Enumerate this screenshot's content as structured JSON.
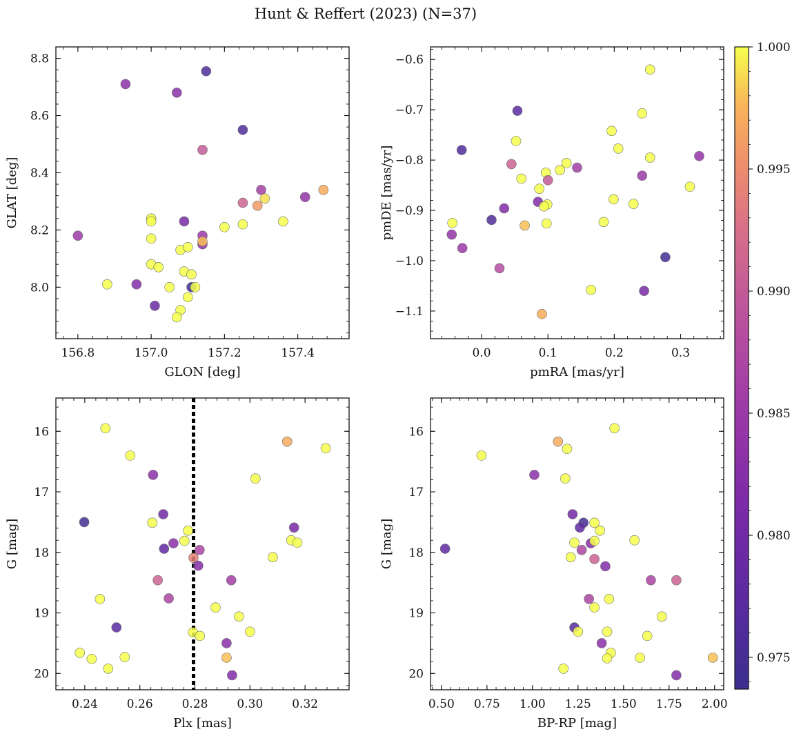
{
  "title": "Hunt & Reffert (2023) (N=37)",
  "colorbar": {
    "vmin": 0.9737,
    "vmax": 1.0,
    "ticks": [
      0.975,
      0.98,
      0.985,
      0.99,
      0.995,
      1.0
    ],
    "tick_labels": [
      "0.975",
      "0.980",
      "0.985",
      "0.990",
      "0.995",
      "1.000"
    ],
    "colormap": "plasma"
  },
  "chart_data": [
    {
      "type": "scatter",
      "id": "glon-glat",
      "xlabel": "GLON [deg]",
      "ylabel": "GLAT [deg]",
      "xlim": [
        156.74,
        157.54
      ],
      "ylim": [
        7.82,
        8.84
      ],
      "xticks": [
        156.8,
        157.0,
        157.2,
        157.4
      ],
      "xtick_labels": [
        "156.8",
        "157.0",
        "157.2",
        "157.4"
      ],
      "yticks": [
        8.0,
        8.2,
        8.4,
        8.6,
        8.8
      ],
      "ytick_labels": [
        "8.0",
        "8.2",
        "8.4",
        "8.6",
        "8.8"
      ],
      "points": [
        [
          156.93,
          8.71,
          0.983
        ],
        [
          157.15,
          8.755,
          0.976
        ],
        [
          157.07,
          8.68,
          0.983
        ],
        [
          157.25,
          8.55,
          0.976
        ],
        [
          157.14,
          8.48,
          0.99
        ],
        [
          157.47,
          8.34,
          0.997
        ],
        [
          157.3,
          8.34,
          0.986
        ],
        [
          157.31,
          8.31,
          0.999
        ],
        [
          157.25,
          8.295,
          0.991
        ],
        [
          157.29,
          8.285,
          0.996
        ],
        [
          157.42,
          8.315,
          0.984
        ],
        [
          156.8,
          8.18,
          0.985
        ],
        [
          157.0,
          8.24,
          1.0
        ],
        [
          157.0,
          8.23,
          1.0
        ],
        [
          157.0,
          8.17,
          1.0
        ],
        [
          157.09,
          8.23,
          0.981
        ],
        [
          157.14,
          8.18,
          0.985
        ],
        [
          157.14,
          8.15,
          0.983
        ],
        [
          157.14,
          8.16,
          0.998
        ],
        [
          157.2,
          8.21,
          1.0
        ],
        [
          157.25,
          8.22,
          1.0
        ],
        [
          157.36,
          8.23,
          1.0
        ],
        [
          157.08,
          8.13,
          1.0
        ],
        [
          157.1,
          8.14,
          1.0
        ],
        [
          157.0,
          8.08,
          1.0
        ],
        [
          157.02,
          8.07,
          1.0
        ],
        [
          157.09,
          8.055,
          1.0
        ],
        [
          157.11,
          8.045,
          1.0
        ],
        [
          156.88,
          8.01,
          1.0
        ],
        [
          156.96,
          8.01,
          0.982
        ],
        [
          157.05,
          8.0,
          1.0
        ],
        [
          157.11,
          8.0,
          0.974
        ],
        [
          157.12,
          8.0,
          1.0
        ],
        [
          157.1,
          7.965,
          1.0
        ],
        [
          157.01,
          7.935,
          0.979
        ],
        [
          157.08,
          7.92,
          1.0
        ],
        [
          157.07,
          7.895,
          1.0
        ]
      ]
    },
    {
      "type": "scatter",
      "id": "pm",
      "xlabel": "pmRA [mas/yr]",
      "ylabel": "pmDE [mas/yr]",
      "xlim": [
        -0.077,
        0.365
      ],
      "ylim": [
        -1.155,
        -0.575
      ],
      "xticks": [
        0.0,
        0.1,
        0.2,
        0.3
      ],
      "xtick_labels": [
        "0.0",
        "0.1",
        "0.2",
        "0.3"
      ],
      "yticks": [
        -1.1,
        -1.0,
        -0.9,
        -0.8,
        -0.7,
        -0.6
      ],
      "ytick_labels": [
        "−1.1",
        "−1.0",
        "−0.9",
        "−0.8",
        "−0.7",
        "−0.6"
      ],
      "points": [
        [
          0.254,
          -0.62,
          1.0
        ],
        [
          0.054,
          -0.702,
          0.977
        ],
        [
          0.242,
          -0.707,
          1.0
        ],
        [
          0.196,
          -0.742,
          1.0
        ],
        [
          -0.03,
          -0.78,
          0.976
        ],
        [
          0.052,
          -0.762,
          1.0
        ],
        [
          0.206,
          -0.777,
          1.0
        ],
        [
          0.254,
          -0.795,
          1.0
        ],
        [
          0.328,
          -0.792,
          0.984
        ],
        [
          0.045,
          -0.808,
          0.991
        ],
        [
          0.128,
          -0.806,
          1.0
        ],
        [
          0.144,
          -0.815,
          0.986
        ],
        [
          0.118,
          -0.82,
          1.0
        ],
        [
          0.097,
          -0.825,
          1.0
        ],
        [
          0.06,
          -0.837,
          1.0
        ],
        [
          0.1,
          -0.84,
          0.99
        ],
        [
          0.242,
          -0.831,
          0.985
        ],
        [
          0.087,
          -0.857,
          1.0
        ],
        [
          0.314,
          -0.853,
          1.0
        ],
        [
          0.199,
          -0.878,
          1.0
        ],
        [
          0.085,
          -0.883,
          0.982
        ],
        [
          0.229,
          -0.887,
          1.0
        ],
        [
          0.099,
          -0.888,
          1.0
        ],
        [
          0.094,
          -0.892,
          1.0
        ],
        [
          0.034,
          -0.896,
          0.982
        ],
        [
          0.015,
          -0.919,
          0.976
        ],
        [
          0.184,
          -0.923,
          1.0
        ],
        [
          0.098,
          -0.926,
          1.0
        ],
        [
          -0.044,
          -0.925,
          1.0
        ],
        [
          0.065,
          -0.93,
          0.998
        ],
        [
          -0.045,
          -0.948,
          0.984
        ],
        [
          -0.029,
          -0.975,
          0.985
        ],
        [
          0.277,
          -0.993,
          0.975
        ],
        [
          0.027,
          -1.015,
          0.988
        ],
        [
          0.165,
          -1.058,
          1.0
        ],
        [
          0.245,
          -1.06,
          0.981
        ],
        [
          0.091,
          -1.106,
          0.997
        ]
      ]
    },
    {
      "type": "scatter",
      "id": "plx-g",
      "xlabel": "Plx [mas]",
      "ylabel": "G [mag]",
      "xlim": [
        0.2295,
        0.336
      ],
      "ylim": [
        20.27,
        15.45
      ],
      "xticks": [
        0.24,
        0.26,
        0.28,
        0.3,
        0.32
      ],
      "xtick_labels": [
        "0.24",
        "0.26",
        "0.28",
        "0.30",
        "0.32"
      ],
      "yticks": [
        16,
        17,
        18,
        19,
        20
      ],
      "ytick_labels": [
        "16",
        "17",
        "18",
        "19",
        "20"
      ],
      "vline": 0.2795,
      "points": [
        [
          0.2475,
          15.95,
          1.0
        ],
        [
          0.3135,
          16.17,
          0.997
        ],
        [
          0.3275,
          16.28,
          1.0
        ],
        [
          0.2565,
          16.4,
          1.0
        ],
        [
          0.2648,
          16.72,
          0.983
        ],
        [
          0.302,
          16.78,
          1.0
        ],
        [
          0.2398,
          17.5,
          0.975
        ],
        [
          0.2685,
          17.37,
          0.98
        ],
        [
          0.2645,
          17.51,
          1.0
        ],
        [
          0.316,
          17.59,
          0.981
        ],
        [
          0.2775,
          17.64,
          1.0
        ],
        [
          0.315,
          17.8,
          1.0
        ],
        [
          0.3172,
          17.84,
          1.0
        ],
        [
          0.2762,
          17.81,
          1.0
        ],
        [
          0.2722,
          17.85,
          0.983
        ],
        [
          0.2688,
          17.94,
          0.978
        ],
        [
          0.2817,
          17.96,
          0.987
        ],
        [
          0.3083,
          18.08,
          1.0
        ],
        [
          0.2795,
          18.09,
          0.994
        ],
        [
          0.2812,
          18.22,
          0.982
        ],
        [
          0.2665,
          18.46,
          0.991
        ],
        [
          0.2932,
          18.46,
          0.986
        ],
        [
          0.2705,
          18.76,
          0.987
        ],
        [
          0.2455,
          18.77,
          1.0
        ],
        [
          0.2875,
          18.91,
          1.0
        ],
        [
          0.296,
          19.06,
          1.0
        ],
        [
          0.2515,
          19.24,
          0.977
        ],
        [
          0.2793,
          19.32,
          1.0
        ],
        [
          0.2818,
          19.38,
          1.0
        ],
        [
          0.3,
          19.31,
          1.0
        ],
        [
          0.2915,
          19.5,
          0.983
        ],
        [
          0.2382,
          19.66,
          1.0
        ],
        [
          0.2425,
          19.76,
          1.0
        ],
        [
          0.2545,
          19.73,
          1.0
        ],
        [
          0.2915,
          19.74,
          0.998
        ],
        [
          0.2485,
          19.92,
          1.0
        ],
        [
          0.2935,
          20.03,
          0.982
        ]
      ]
    },
    {
      "type": "scatter",
      "id": "cmd",
      "xlabel": "BP-RP [mag]",
      "ylabel": "G [mag]",
      "xlim": [
        0.44,
        2.05
      ],
      "ylim": [
        20.27,
        15.45
      ],
      "xticks": [
        0.5,
        0.75,
        1.0,
        1.25,
        1.5,
        1.75,
        2.0
      ],
      "xtick_labels": [
        "0.50",
        "0.75",
        "1.00",
        "1.25",
        "1.50",
        "1.75",
        "2.00"
      ],
      "yticks": [
        16,
        17,
        18,
        19,
        20
      ],
      "ytick_labels": [
        "16",
        "17",
        "18",
        "19",
        "20"
      ],
      "points": [
        [
          1.45,
          15.95,
          1.0
        ],
        [
          1.14,
          16.17,
          0.997
        ],
        [
          1.19,
          16.29,
          1.0
        ],
        [
          0.72,
          16.4,
          1.0
        ],
        [
          1.01,
          16.72,
          0.983
        ],
        [
          1.18,
          16.78,
          1.0
        ],
        [
          1.22,
          17.37,
          0.98
        ],
        [
          1.28,
          17.51,
          0.975
        ],
        [
          1.26,
          17.59,
          0.978
        ],
        [
          1.34,
          17.51,
          1.0
        ],
        [
          1.37,
          17.64,
          1.0
        ],
        [
          0.52,
          17.94,
          0.978
        ],
        [
          1.32,
          17.85,
          0.983
        ],
        [
          1.23,
          17.84,
          1.0
        ],
        [
          1.34,
          17.81,
          1.0
        ],
        [
          1.56,
          17.8,
          1.0
        ],
        [
          1.27,
          17.96,
          0.987
        ],
        [
          1.21,
          18.08,
          1.0
        ],
        [
          1.34,
          18.11,
          0.991
        ],
        [
          1.4,
          18.23,
          0.982
        ],
        [
          1.65,
          18.46,
          0.987
        ],
        [
          1.79,
          18.46,
          0.991
        ],
        [
          1.31,
          18.77,
          0.987
        ],
        [
          1.42,
          18.77,
          1.0
        ],
        [
          1.34,
          18.91,
          1.0
        ],
        [
          1.71,
          19.06,
          1.0
        ],
        [
          1.23,
          19.24,
          0.977
        ],
        [
          1.25,
          19.31,
          1.0
        ],
        [
          1.41,
          19.31,
          1.0
        ],
        [
          1.63,
          19.38,
          1.0
        ],
        [
          1.38,
          19.5,
          0.983
        ],
        [
          1.43,
          19.66,
          1.0
        ],
        [
          1.41,
          19.75,
          1.0
        ],
        [
          1.59,
          19.74,
          1.0
        ],
        [
          1.99,
          19.74,
          0.998
        ],
        [
          1.17,
          19.92,
          1.0
        ],
        [
          1.79,
          20.03,
          0.982
        ]
      ]
    }
  ]
}
